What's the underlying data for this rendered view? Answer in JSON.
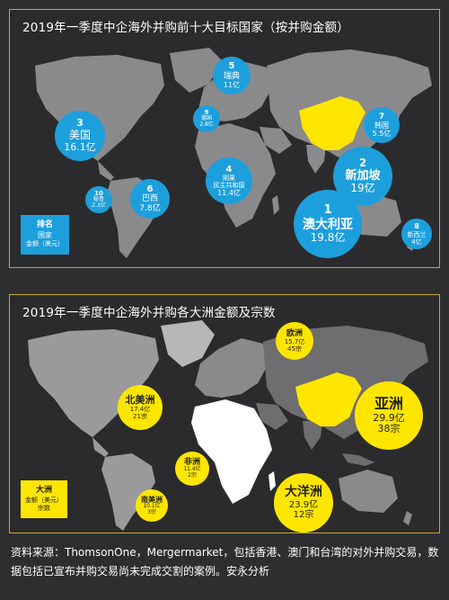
{
  "chart_data": [
    {
      "type": "bubble-map",
      "title": "2019年一季度中企海外并购前十大目标国家（按并购金额）",
      "legend": {
        "line1": "排名",
        "line2": "国家",
        "line3": "金额（美元）"
      },
      "unit": "亿",
      "points": [
        {
          "rank": "1",
          "name": "澳大利亚",
          "value_label": "19.8亿",
          "value": 19.8
        },
        {
          "rank": "2",
          "name": "新加坡",
          "value_label": "19亿",
          "value": 19
        },
        {
          "rank": "3",
          "name": "美国",
          "value_label": "16.1亿",
          "value": 16.1
        },
        {
          "rank": "4",
          "name": "刚果\n民主共和国",
          "value_label": "11.4亿",
          "value": 11.4
        },
        {
          "rank": "5",
          "name": "瑞典",
          "value_label": "11亿",
          "value": 11
        },
        {
          "rank": "6",
          "name": "巴西",
          "value_label": "7.8亿",
          "value": 7.8
        },
        {
          "rank": "7",
          "name": "韩国",
          "value_label": "5.5亿",
          "value": 5.5
        },
        {
          "rank": "8",
          "name": "新西兰",
          "value_label": "4亿",
          "value": 4
        },
        {
          "rank": "9",
          "name": "德国",
          "value_label": "2.8亿",
          "value": 2.8
        },
        {
          "rank": "10",
          "name": "秘鲁",
          "value_label": "2.3亿",
          "value": 2.3
        }
      ],
      "colors": {
        "bubble": "#1d9fdc",
        "china": "#ffe600",
        "map": "#8a8a8c"
      }
    },
    {
      "type": "bubble-map",
      "title": "2019年一季度中企海外并购各大洲金额及宗数",
      "legend": {
        "line1": "大洲",
        "line2": "金额（美元）",
        "line3": "宗数"
      },
      "points": [
        {
          "name": "亚洲",
          "value_label": "29.9亿",
          "count_label": "38宗",
          "value": 29.9,
          "count": 38
        },
        {
          "name": "大洋洲",
          "value_label": "23.9亿",
          "count_label": "12宗",
          "value": 23.9,
          "count": 12
        },
        {
          "name": "北美洲",
          "value_label": "17.4亿",
          "count_label": "21宗",
          "value": 17.4,
          "count": 21
        },
        {
          "name": "欧洲",
          "value_label": "15.7亿",
          "count_label": "45宗",
          "value": 15.7,
          "count": 45
        },
        {
          "name": "非洲",
          "value_label": "11.4亿",
          "count_label": "2宗",
          "value": 11.4,
          "count": 2
        },
        {
          "name": "南美洲",
          "value_label": "10.1亿",
          "count_label": "3宗",
          "value": 10.1,
          "count": 3
        }
      ],
      "colors": {
        "bubble": "#ffe600",
        "china": "#ffe600",
        "africa": "#ffffff"
      }
    }
  ],
  "source_note": "资料来源：ThomsonOne，Mergermarket，包括香港、澳门和台湾的对外并购交易，数据包括已宣布并购交易尚未完成交割的案例。安永分析"
}
